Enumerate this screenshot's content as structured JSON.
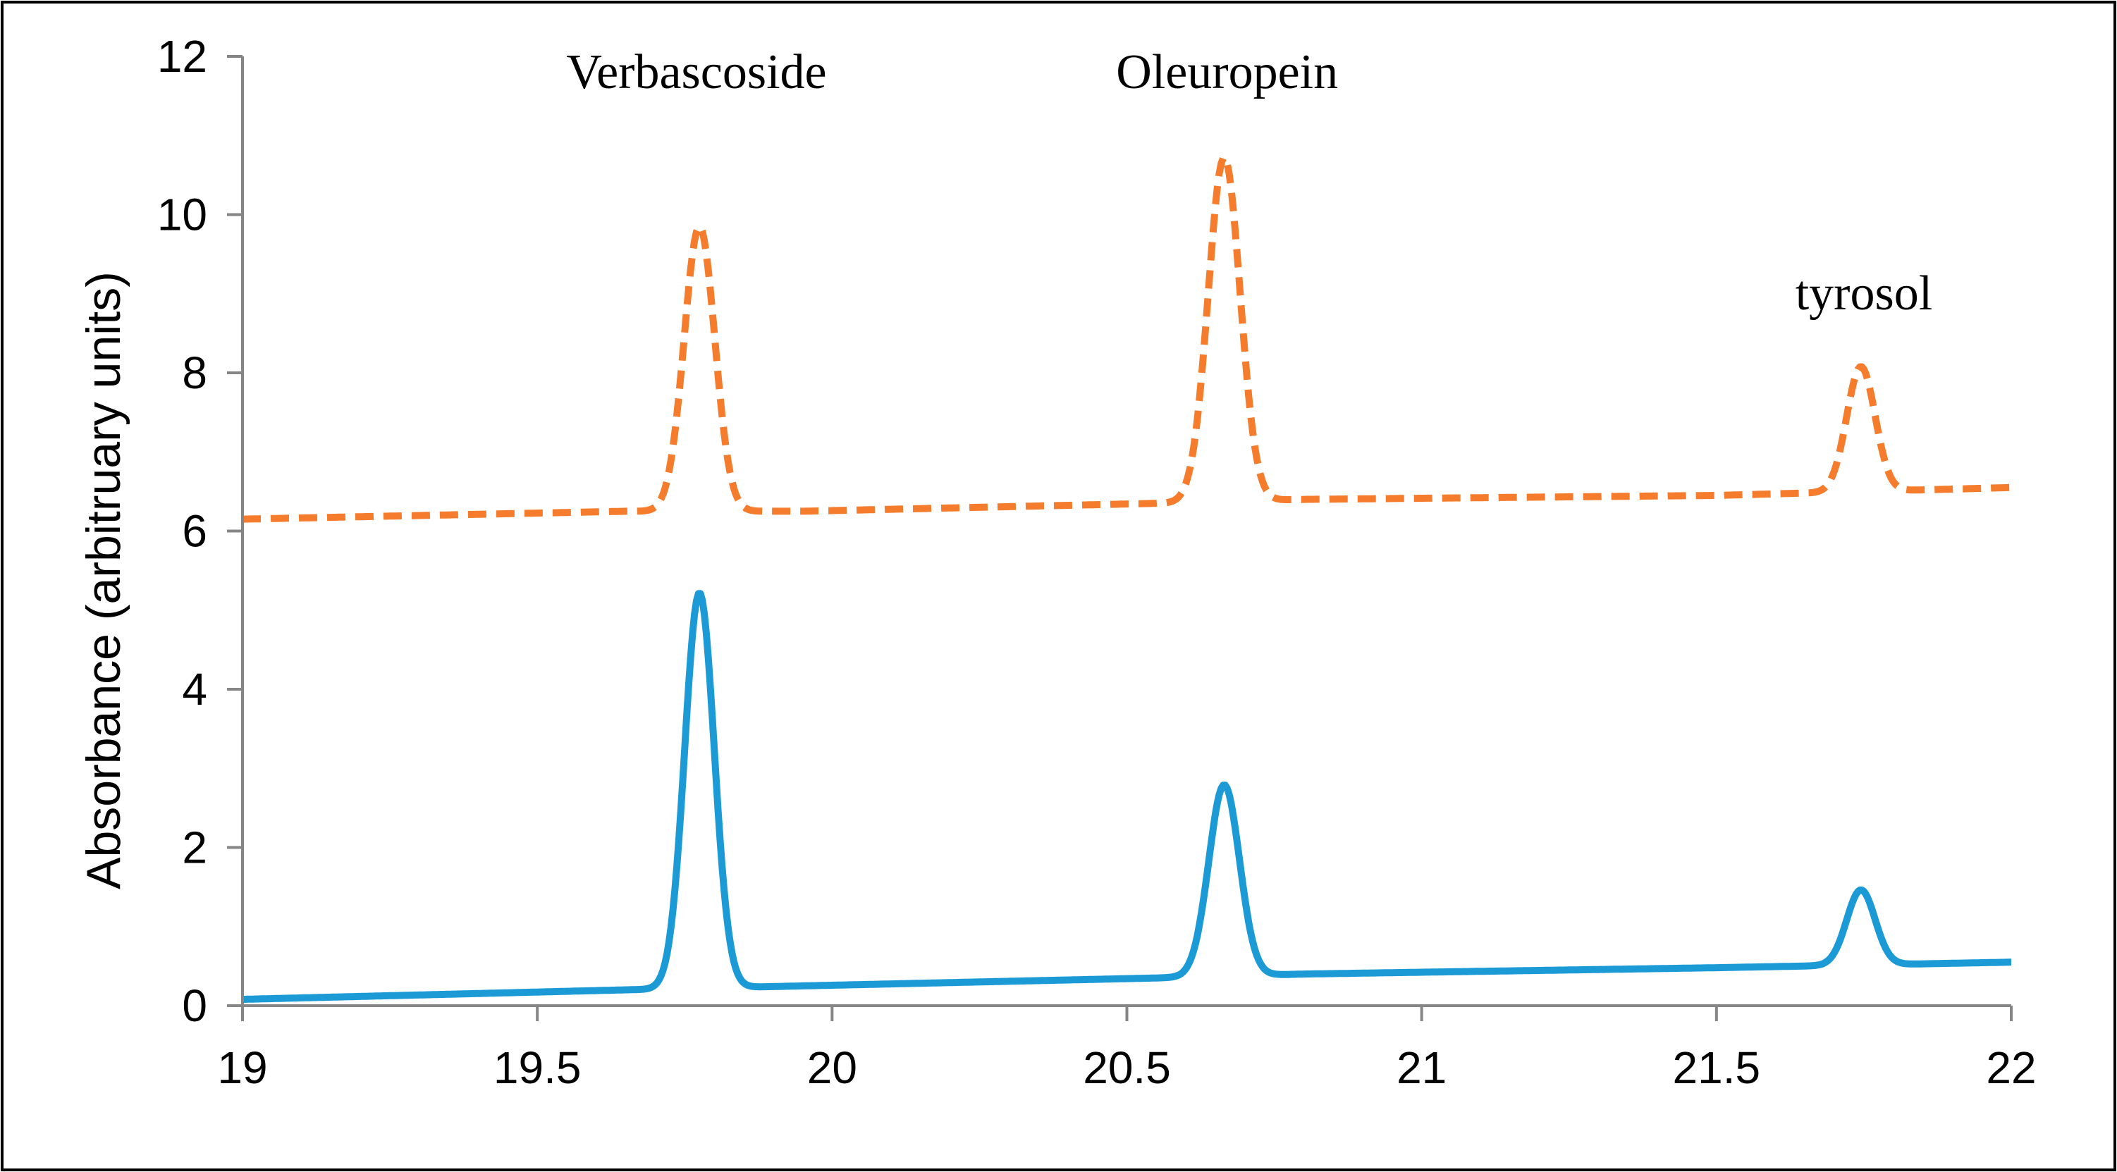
{
  "chart_data": {
    "type": "line",
    "title": "",
    "xlabel": "",
    "ylabel": "Absorbance (arbitruary units)",
    "xlim": [
      19,
      22
    ],
    "ylim": [
      0,
      12
    ],
    "x_ticks": [
      "19",
      "19.5",
      "20",
      "20.5",
      "21",
      "21.5",
      "22"
    ],
    "y_ticks": [
      "0",
      "2",
      "4",
      "6",
      "8",
      "10",
      "12"
    ],
    "grid": false,
    "legend": "none",
    "annotations": [
      {
        "text": "Verbascoside",
        "x": 19.77,
        "y": 11.6
      },
      {
        "text": "Oleuropein",
        "x": 20.67,
        "y": 11.6
      },
      {
        "text": "tyrosol",
        "x": 21.75,
        "y": 8.8
      }
    ],
    "series": [
      {
        "name": "upper trace",
        "color": "#F47C2C",
        "style": "dashed",
        "baseline": [
          [
            19.0,
            6.15
          ],
          [
            19.65,
            6.25
          ],
          [
            19.95,
            6.25
          ],
          [
            20.55,
            6.35
          ],
          [
            20.8,
            6.4
          ],
          [
            21.5,
            6.45
          ],
          [
            22.0,
            6.55
          ]
        ],
        "peaks": [
          {
            "center": 19.775,
            "height": 3.6,
            "sigma": 0.026
          },
          {
            "center": 20.665,
            "height": 4.35,
            "sigma": 0.027
          },
          {
            "center": 21.745,
            "height": 1.58,
            "sigma": 0.024
          }
        ]
      },
      {
        "name": "lower trace",
        "color": "#1B9AD6",
        "style": "solid",
        "baseline": [
          [
            19.0,
            0.08
          ],
          [
            19.65,
            0.2
          ],
          [
            19.95,
            0.25
          ],
          [
            20.55,
            0.35
          ],
          [
            20.8,
            0.4
          ],
          [
            21.5,
            0.48
          ],
          [
            22.0,
            0.55
          ]
        ],
        "peaks": [
          {
            "center": 19.775,
            "height": 5.0,
            "sigma": 0.025
          },
          {
            "center": 20.665,
            "height": 2.42,
            "sigma": 0.026
          },
          {
            "center": 21.745,
            "height": 0.95,
            "sigma": 0.024
          }
        ]
      }
    ]
  }
}
